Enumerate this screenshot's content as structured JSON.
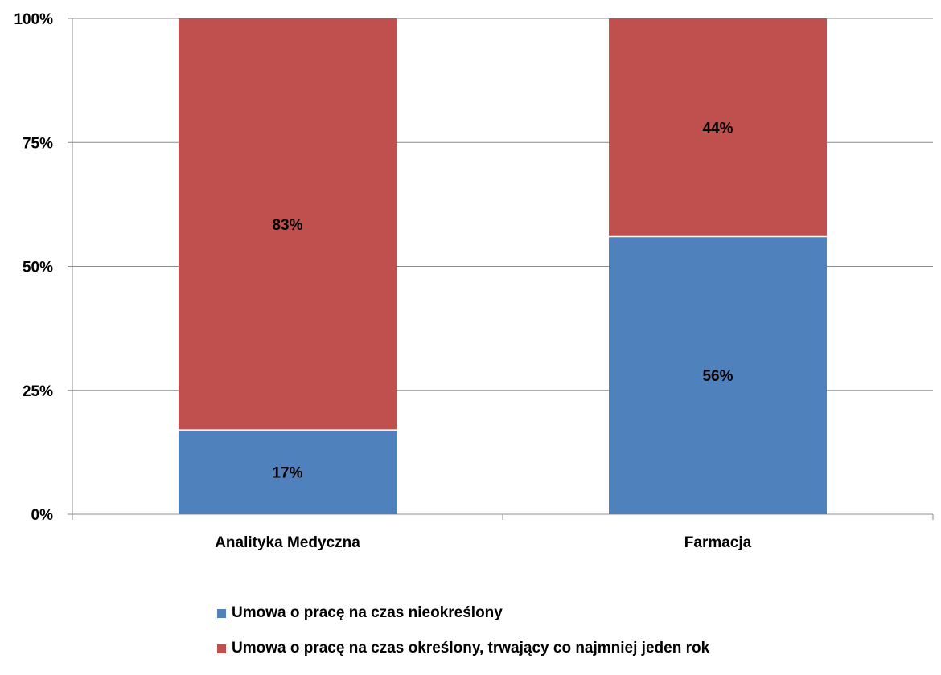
{
  "chart_data": {
    "type": "bar",
    "stacked": true,
    "categories": [
      "Analityka Medyczna",
      "Farmacja"
    ],
    "series": [
      {
        "name": "Umowa o pracę na czas nieokreślony",
        "values": [
          17,
          56
        ],
        "labels": [
          "17%",
          "56%"
        ],
        "color": "#4F81BD"
      },
      {
        "name": "Umowa o pracę na czas określony, trwający co najmniej jeden rok",
        "values": [
          83,
          44
        ],
        "labels": [
          "83%",
          "44%"
        ],
        "color": "#C0504D"
      }
    ],
    "yticks": [
      "0%",
      "25%",
      "50%",
      "75%",
      "100%"
    ],
    "ylim": [
      0,
      100
    ],
    "grid": true,
    "legend_position": "bottom"
  }
}
